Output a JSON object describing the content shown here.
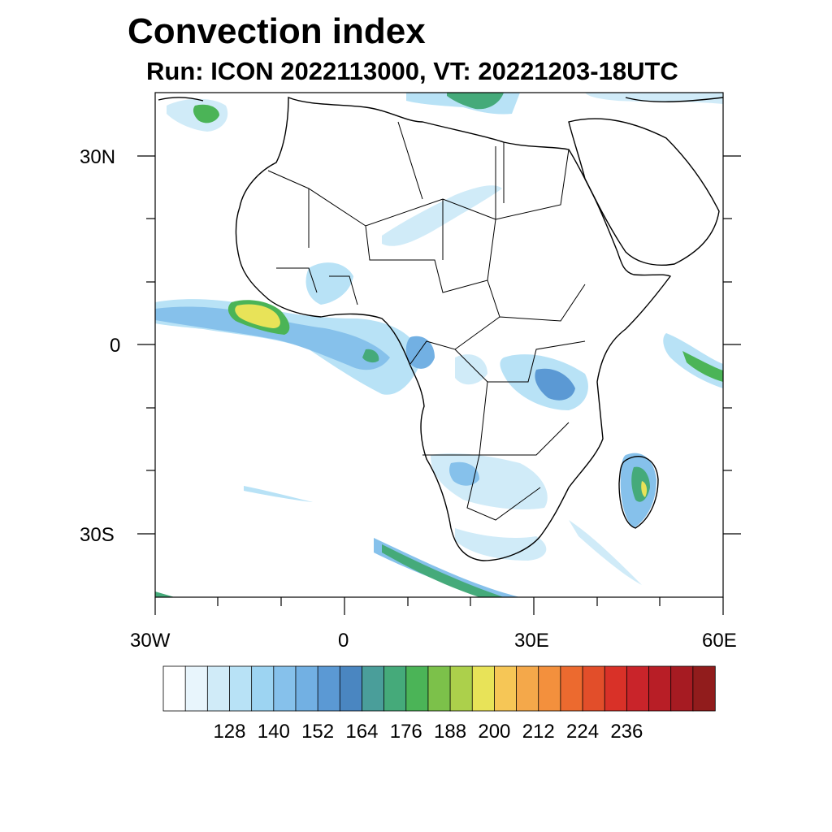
{
  "title": "Convection index",
  "subtitle": "Run: ICON 2022113000,  VT: 20221203-18UTC",
  "map": {
    "region": "Africa",
    "projection": "cylindrical equidistant",
    "lon_range": [
      -30,
      60
    ],
    "lat_range": [
      -40,
      40
    ],
    "axis_labels": {
      "x": [
        "30W",
        "0",
        "30E",
        "60E"
      ],
      "y": [
        "30N",
        "0",
        "30S"
      ]
    }
  },
  "colorbar": {
    "labels": [
      "128",
      "140",
      "152",
      "164",
      "176",
      "188",
      "200",
      "212",
      "224",
      "236"
    ],
    "colors": [
      "#ffffff",
      "#e8f5fc",
      "#d0ebf8",
      "#b8e2f6",
      "#9dd4f2",
      "#86c1eb",
      "#72b0e3",
      "#5b99d4",
      "#4a86c1",
      "#4a9e9a",
      "#45aa7a",
      "#4bb457",
      "#7cc14a",
      "#acd04b",
      "#e8e358",
      "#f6c656",
      "#f4a84a",
      "#f3903d",
      "#ec6a2f",
      "#e24e2a",
      "#d93128",
      "#c9242a",
      "#b81e26",
      "#a61b22",
      "#911c1c"
    ]
  }
}
